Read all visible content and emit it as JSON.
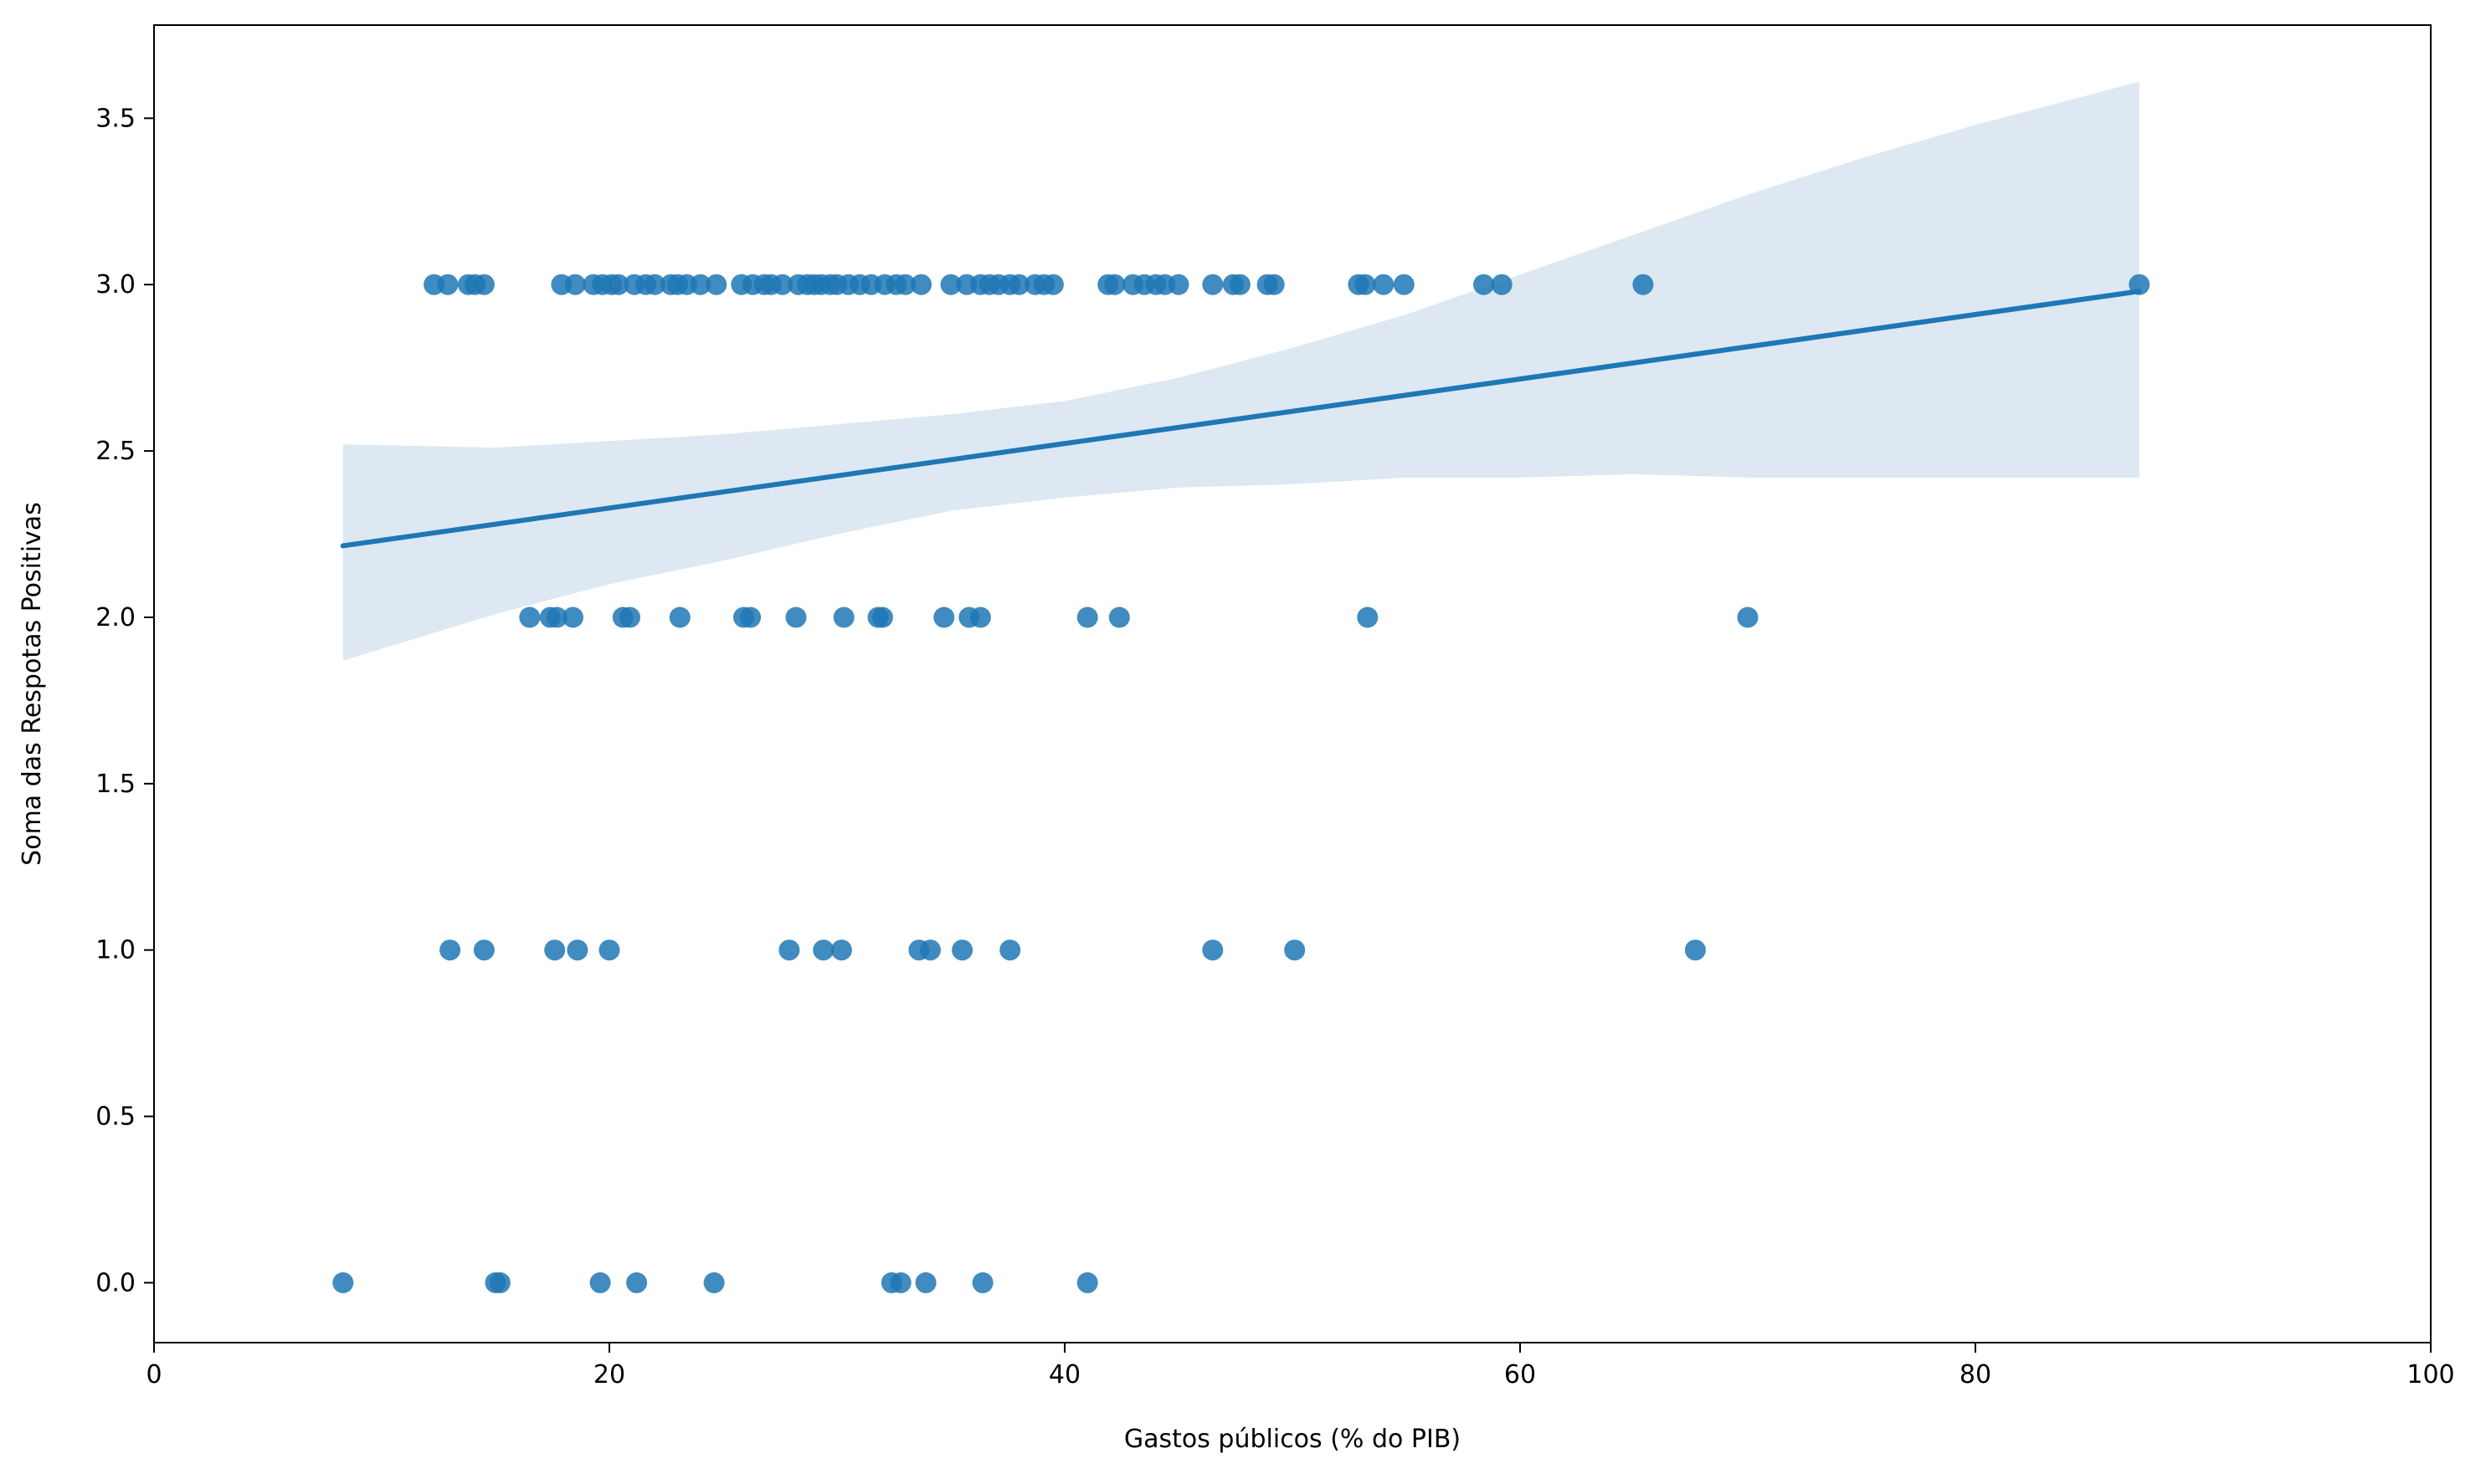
{
  "chart_data": {
    "type": "scatter",
    "title": "",
    "xlabel": "Gastos públicos (% do PIB)",
    "ylabel": "Soma das Respotas Positivas",
    "xlim": [
      0,
      100
    ],
    "ylim": [
      -0.18,
      3.78
    ],
    "x_ticks": [
      0,
      20,
      40,
      60,
      80,
      100
    ],
    "x_tick_labels": [
      "0",
      "20",
      "40",
      "60",
      "80",
      "100"
    ],
    "y_ticks": [
      0.0,
      0.5,
      1.0,
      1.5,
      2.0,
      2.5,
      3.0,
      3.5
    ],
    "y_tick_labels": [
      "0.0",
      "0.5",
      "1.0",
      "1.5",
      "2.0",
      "2.5",
      "3.0",
      "3.5"
    ],
    "grid": false,
    "legend": "none",
    "colors": {
      "points": "#1f77b4",
      "regression_line": "#1f77b4",
      "confidence_band": "#dde8f3"
    },
    "series": [
      {
        "name": "",
        "points": [
          {
            "x": 8.3,
            "y": 0
          },
          {
            "x": 15.0,
            "y": 0
          },
          {
            "x": 15.2,
            "y": 0
          },
          {
            "x": 19.6,
            "y": 0
          },
          {
            "x": 21.2,
            "y": 0
          },
          {
            "x": 24.6,
            "y": 0
          },
          {
            "x": 32.4,
            "y": 0
          },
          {
            "x": 32.8,
            "y": 0
          },
          {
            "x": 33.9,
            "y": 0
          },
          {
            "x": 36.4,
            "y": 0
          },
          {
            "x": 41.0,
            "y": 0
          },
          {
            "x": 13.0,
            "y": 1
          },
          {
            "x": 14.5,
            "y": 1
          },
          {
            "x": 17.6,
            "y": 1
          },
          {
            "x": 18.6,
            "y": 1
          },
          {
            "x": 20.0,
            "y": 1
          },
          {
            "x": 27.9,
            "y": 1
          },
          {
            "x": 29.4,
            "y": 1
          },
          {
            "x": 30.2,
            "y": 1
          },
          {
            "x": 33.6,
            "y": 1
          },
          {
            "x": 34.1,
            "y": 1
          },
          {
            "x": 35.5,
            "y": 1
          },
          {
            "x": 37.6,
            "y": 1
          },
          {
            "x": 46.5,
            "y": 1
          },
          {
            "x": 50.1,
            "y": 1
          },
          {
            "x": 67.7,
            "y": 1
          },
          {
            "x": 16.5,
            "y": 2
          },
          {
            "x": 17.4,
            "y": 2
          },
          {
            "x": 17.7,
            "y": 2
          },
          {
            "x": 18.4,
            "y": 2
          },
          {
            "x": 20.6,
            "y": 2
          },
          {
            "x": 20.9,
            "y": 2
          },
          {
            "x": 23.1,
            "y": 2
          },
          {
            "x": 25.9,
            "y": 2
          },
          {
            "x": 26.2,
            "y": 2
          },
          {
            "x": 28.2,
            "y": 2
          },
          {
            "x": 30.3,
            "y": 2
          },
          {
            "x": 31.8,
            "y": 2
          },
          {
            "x": 32.0,
            "y": 2
          },
          {
            "x": 34.7,
            "y": 2
          },
          {
            "x": 35.8,
            "y": 2
          },
          {
            "x": 36.3,
            "y": 2
          },
          {
            "x": 41.0,
            "y": 2
          },
          {
            "x": 42.4,
            "y": 2
          },
          {
            "x": 53.3,
            "y": 2
          },
          {
            "x": 70.0,
            "y": 2
          },
          {
            "x": 12.3,
            "y": 3
          },
          {
            "x": 12.9,
            "y": 3
          },
          {
            "x": 13.8,
            "y": 3
          },
          {
            "x": 14.1,
            "y": 3
          },
          {
            "x": 14.5,
            "y": 3
          },
          {
            "x": 17.9,
            "y": 3
          },
          {
            "x": 18.5,
            "y": 3
          },
          {
            "x": 19.3,
            "y": 3
          },
          {
            "x": 19.7,
            "y": 3
          },
          {
            "x": 20.1,
            "y": 3
          },
          {
            "x": 20.4,
            "y": 3
          },
          {
            "x": 21.1,
            "y": 3
          },
          {
            "x": 21.6,
            "y": 3
          },
          {
            "x": 22.0,
            "y": 3
          },
          {
            "x": 22.7,
            "y": 3
          },
          {
            "x": 23.0,
            "y": 3
          },
          {
            "x": 23.4,
            "y": 3
          },
          {
            "x": 24.0,
            "y": 3
          },
          {
            "x": 24.7,
            "y": 3
          },
          {
            "x": 25.8,
            "y": 3
          },
          {
            "x": 26.3,
            "y": 3
          },
          {
            "x": 26.8,
            "y": 3
          },
          {
            "x": 27.1,
            "y": 3
          },
          {
            "x": 27.6,
            "y": 3
          },
          {
            "x": 28.3,
            "y": 3
          },
          {
            "x": 28.7,
            "y": 3
          },
          {
            "x": 29.0,
            "y": 3
          },
          {
            "x": 29.3,
            "y": 3
          },
          {
            "x": 29.7,
            "y": 3
          },
          {
            "x": 30.0,
            "y": 3
          },
          {
            "x": 30.5,
            "y": 3
          },
          {
            "x": 31.0,
            "y": 3
          },
          {
            "x": 31.5,
            "y": 3
          },
          {
            "x": 32.1,
            "y": 3
          },
          {
            "x": 32.6,
            "y": 3
          },
          {
            "x": 33.0,
            "y": 3
          },
          {
            "x": 33.7,
            "y": 3
          },
          {
            "x": 35.0,
            "y": 3
          },
          {
            "x": 35.7,
            "y": 3
          },
          {
            "x": 36.3,
            "y": 3
          },
          {
            "x": 36.7,
            "y": 3
          },
          {
            "x": 37.1,
            "y": 3
          },
          {
            "x": 37.6,
            "y": 3
          },
          {
            "x": 38.0,
            "y": 3
          },
          {
            "x": 38.7,
            "y": 3
          },
          {
            "x": 39.1,
            "y": 3
          },
          {
            "x": 39.5,
            "y": 3
          },
          {
            "x": 41.9,
            "y": 3
          },
          {
            "x": 42.2,
            "y": 3
          },
          {
            "x": 43.0,
            "y": 3
          },
          {
            "x": 43.5,
            "y": 3
          },
          {
            "x": 44.0,
            "y": 3
          },
          {
            "x": 44.4,
            "y": 3
          },
          {
            "x": 45.0,
            "y": 3
          },
          {
            "x": 46.5,
            "y": 3
          },
          {
            "x": 47.4,
            "y": 3
          },
          {
            "x": 47.7,
            "y": 3
          },
          {
            "x": 48.9,
            "y": 3
          },
          {
            "x": 49.2,
            "y": 3
          },
          {
            "x": 52.9,
            "y": 3
          },
          {
            "x": 53.2,
            "y": 3
          },
          {
            "x": 54.0,
            "y": 3
          },
          {
            "x": 54.9,
            "y": 3
          },
          {
            "x": 58.4,
            "y": 3
          },
          {
            "x": 59.2,
            "y": 3
          },
          {
            "x": 65.4,
            "y": 3
          },
          {
            "x": 87.2,
            "y": 3
          }
        ]
      }
    ],
    "regression_line": {
      "x": [
        8.3,
        87.2
      ],
      "y": [
        2.215,
        2.98
      ]
    },
    "confidence_band": {
      "x": [
        8.3,
        15,
        20,
        25,
        30,
        35,
        40,
        45,
        50,
        55,
        60,
        65,
        70,
        75,
        80,
        87.2
      ],
      "lower": [
        1.87,
        2.01,
        2.1,
        2.17,
        2.25,
        2.32,
        2.36,
        2.39,
        2.4,
        2.42,
        2.42,
        2.43,
        2.42,
        2.42,
        2.42,
        2.42
      ],
      "upper": [
        2.52,
        2.51,
        2.53,
        2.55,
        2.58,
        2.61,
        2.65,
        2.72,
        2.81,
        2.91,
        3.03,
        3.15,
        3.27,
        3.38,
        3.48,
        3.61
      ]
    }
  }
}
